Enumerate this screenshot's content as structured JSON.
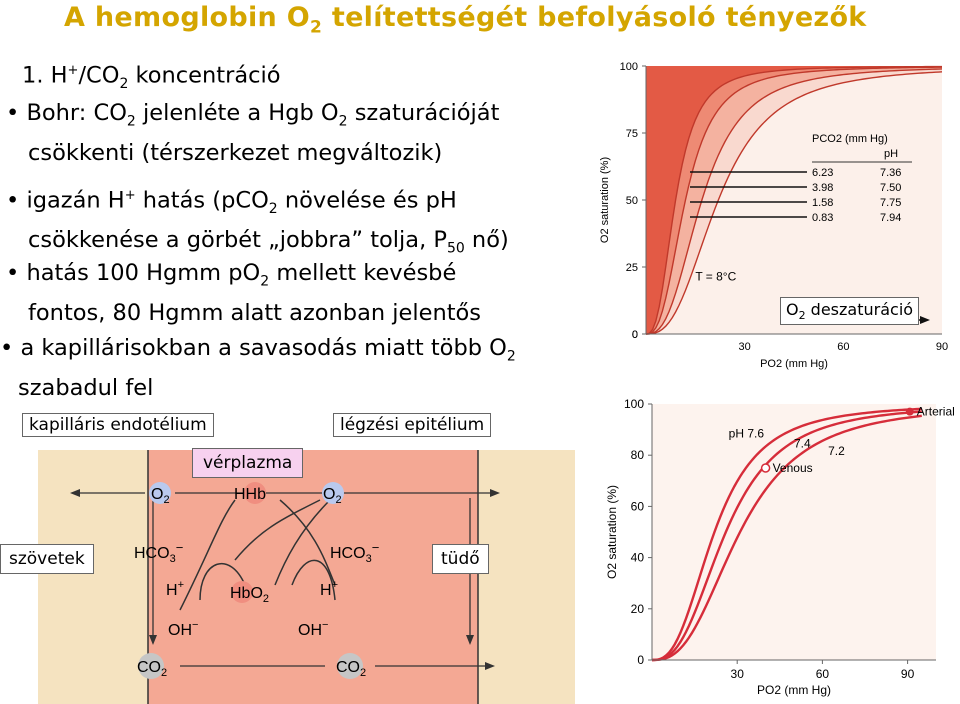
{
  "title": {
    "main": "A hemoglobin O",
    "sub": "2",
    "rest": " telítettségét befolyásoló tényezők"
  },
  "heading": {
    "pre": "1. H",
    "sup": "+",
    "mid": "/CO",
    "sub": "2",
    "post": " koncentráció"
  },
  "bullets": [
    {
      "line1": {
        "a": "Bohr: CO",
        "s1": "2",
        "b": " jelenléte a Hgb O",
        "s2": "2",
        "c": " szaturációját"
      },
      "line2": "csökkenti (térszerkezet megváltozik)"
    },
    {
      "line1": {
        "a": "igazán H",
        "sup": "+",
        "b": " hatás (pCO",
        "s1": "2",
        "c": " növelése és pH"
      },
      "line2": {
        "a": "csökkenése a görbét „jobbra” tolja, P",
        "s1": "50",
        "b": " nő)"
      }
    },
    {
      "line1": {
        "a": "hatás 100 Hgmm pO",
        "s1": "2",
        "b": " mellett kevésbé"
      },
      "line2": "fontos, 80 Hgmm alatt azonban jelentős"
    },
    {
      "line1": {
        "a": "a kapillárisokban a savasodás miatt több O",
        "s1": "2"
      },
      "line2": "szabadul fel"
    }
  ],
  "labels": {
    "endothel": "kapilláris endotélium",
    "epithel": "légzési epitélium",
    "plasma": "vérplazma",
    "tissue": "szövetek",
    "lung": "tüdő",
    "desat": "O",
    "desat_sub": "2",
    "desat_rest": " deszaturáció"
  },
  "diagram": {
    "o2": "O",
    "o2_sub": "2",
    "hhb": "HHb",
    "hco3": "HCO",
    "hco3_sub": "3",
    "minus": "−",
    "hplus": "H",
    "hplus_sup": "+",
    "hbo2": "HbO",
    "hbo2_sub": "2",
    "oh": "OH",
    "oh_sup": "−",
    "co2": "CO",
    "co2_sub": "2"
  },
  "chart_data": [
    {
      "type": "line",
      "ylabel": "O2 saturation (%)",
      "xlabel": "PO2 (mm Hg)",
      "x_ticks": [
        30,
        60,
        90
      ],
      "y_ticks": [
        0,
        25,
        50,
        75,
        100
      ],
      "xlim": [
        0,
        90
      ],
      "ylim": [
        0,
        100
      ],
      "annotation": "T = 8°C",
      "legend_header": [
        "PCO2 (mm Hg)",
        "pH"
      ],
      "legend_rows": [
        [
          "6.23",
          "7.36"
        ],
        [
          "3.98",
          "7.50"
        ],
        [
          "1.58",
          "7.75"
        ],
        [
          "0.83",
          "7.94"
        ]
      ],
      "series_p50": [
        22,
        17,
        12,
        9
      ]
    },
    {
      "type": "line",
      "ylabel": "O2 saturation (%)",
      "xlabel": "PO2 (mm Hg)",
      "x_ticks": [
        30,
        60,
        90
      ],
      "y_ticks": [
        0,
        20,
        40,
        60,
        80,
        100
      ],
      "xlim": [
        0,
        100
      ],
      "ylim": [
        0,
        100
      ],
      "labels": [
        "pH 7.6",
        "7.4",
        "7.2"
      ],
      "series_p50": [
        22,
        26,
        31
      ],
      "arterial": {
        "label": "Arterial",
        "x": 95,
        "y": 97
      },
      "venous": {
        "label": "Venous",
        "x": 40,
        "y": 75
      }
    }
  ]
}
